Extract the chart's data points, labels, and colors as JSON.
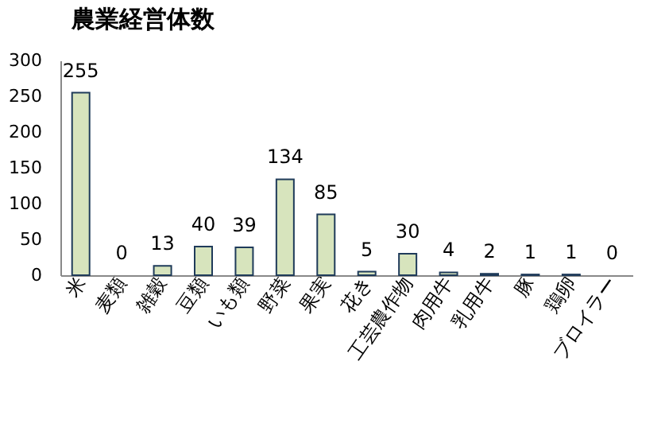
{
  "chart_data": {
    "type": "bar",
    "title": "農業経営体数",
    "categories": [
      "米",
      "麦類",
      "雑穀",
      "豆類",
      "いも類",
      "野菜",
      "果実",
      "花き",
      "工芸農作物",
      "肉用牛",
      "乳用牛",
      "豚",
      "鶏卵",
      "ブロイラー"
    ],
    "values": [
      255,
      0,
      13,
      40,
      39,
      134,
      85,
      5,
      30,
      4,
      2,
      1,
      1,
      0
    ],
    "color": "#d7e4bd",
    "ylim": [
      0,
      300
    ],
    "yticks": [
      0,
      50,
      100,
      150,
      200,
      250,
      300
    ],
    "grid": false,
    "data_labels": true
  }
}
